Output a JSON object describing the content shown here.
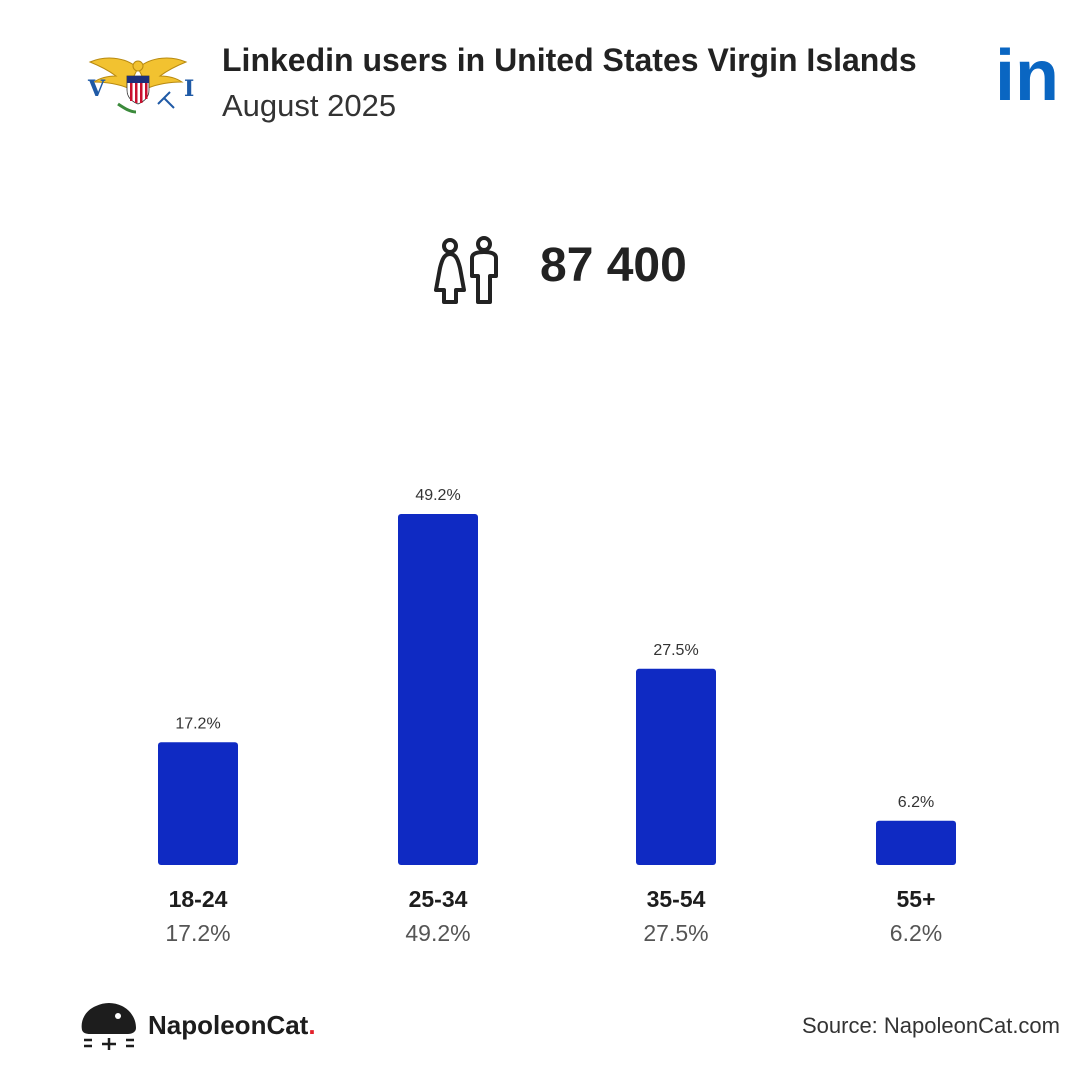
{
  "header": {
    "title": "Linkedin users in United States Virgin Islands",
    "subtitle": "August 2025",
    "flag_icon": "usvi-flag-icon",
    "brand_logo_icon": "linkedin-logo-icon",
    "brand_logo_text": "in",
    "brand_logo_color": "#0a66c2"
  },
  "total": {
    "icon": "people-icon",
    "value": "87 400"
  },
  "chart_data": {
    "type": "bar",
    "categories": [
      "18-24",
      "25-34",
      "35-54",
      "55+"
    ],
    "values": [
      17.2,
      49.2,
      27.5,
      6.2
    ],
    "value_labels": [
      "17.2%",
      "49.2%",
      "27.5%",
      "6.2%"
    ],
    "ylim": [
      0,
      49.2
    ],
    "grid": false,
    "bar_color": "#0f2ac3"
  },
  "footer": {
    "brand_name": "NapoleonCat",
    "brand_dot": ".",
    "brand_icon": "napoleoncat-logo-icon",
    "source": "Source: NapoleonCat.com"
  },
  "colors": {
    "text": "#222222",
    "muted": "#555555",
    "accent_red": "#e3202a"
  }
}
